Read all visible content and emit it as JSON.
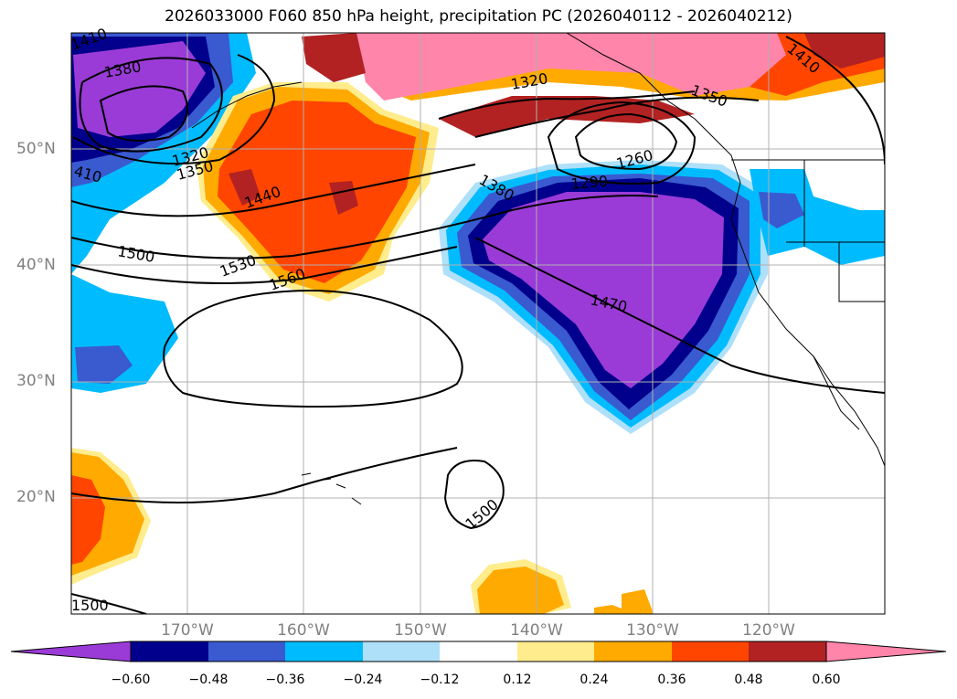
{
  "title": "2026033000 F060 850 hPa height, precipitation PC (2026040112 - 2026040212)",
  "map": {
    "latitudes": [
      {
        "label": "50°N",
        "value": 50
      },
      {
        "label": "40°N",
        "value": 40
      },
      {
        "label": "30°N",
        "value": 30
      },
      {
        "label": "20°N",
        "value": 20
      }
    ],
    "longitudes": [
      {
        "label": "170°W",
        "value": -170
      },
      {
        "label": "160°W",
        "value": -160
      },
      {
        "label": "150°W",
        "value": -150
      },
      {
        "label": "140°W",
        "value": -140
      },
      {
        "label": "130°W",
        "value": -130
      },
      {
        "label": "120°W",
        "value": -120
      }
    ],
    "contour_labels": [
      "1410",
      "1380",
      "1320",
      "1350",
      "1440",
      "1500",
      "1530",
      "1560",
      "410",
      "1320",
      "1350",
      "1410",
      "1380",
      "1260",
      "1290",
      "1470",
      "1500",
      "1500"
    ]
  },
  "colorbar": {
    "labels": [
      "−0.60",
      "−0.48",
      "−0.36",
      "−0.24",
      "−0.12",
      "0.12",
      "0.24",
      "0.36",
      "0.48",
      "0.60"
    ],
    "colors": [
      "#9a3bd8",
      "#00008c",
      "#3a5ad0",
      "#00bcff",
      "#aee0fa",
      "#ffffff",
      "#ffec8c",
      "#ffaa00",
      "#ff4500",
      "#b22222",
      "#ff85aa"
    ]
  }
}
